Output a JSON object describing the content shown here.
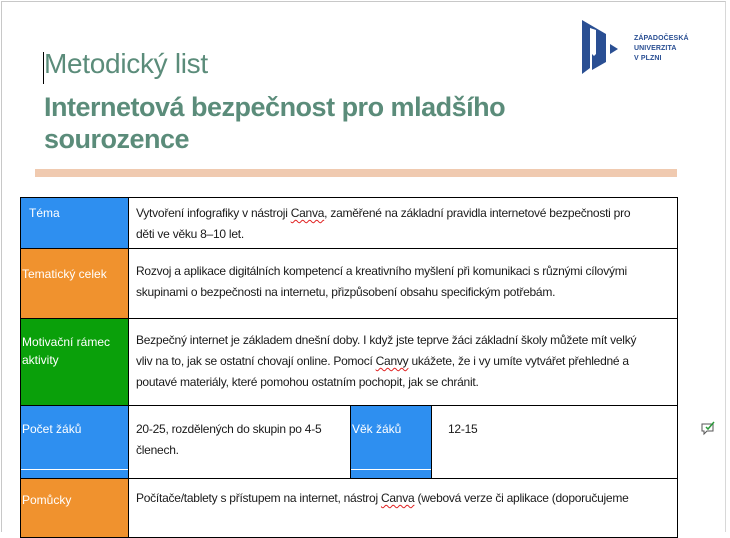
{
  "document": {
    "title_small": "Metodický list",
    "title_lines": [
      "Internetová bezpečnost pro mladšího",
      "sourozence"
    ]
  },
  "logo": {
    "lines": [
      "ZÁPADOČESKÁ",
      "UNIVERZITA",
      "V PLZNI"
    ],
    "color": "#2a4f93"
  },
  "colors": {
    "title": "#5b8c7a",
    "accent_bar": "#f0cab0",
    "blue": "#2e8ff0",
    "orange": "#f0922e",
    "green": "#0aa00a"
  },
  "table": {
    "rows": [
      {
        "label": "Téma",
        "lines": [
          {
            "pre": "Vytvoření infografiky v nástroji ",
            "spell": "Canva",
            "post": ", zaměřené na základní pravidla internetové bezpečnosti pro"
          },
          {
            "pre": "děti ve věku 8–10 let."
          }
        ]
      },
      {
        "label": "Tematický celek",
        "lines": [
          {
            "pre": "Rozvoj a aplikace digitálních kompetencí a kreativního myšlení při komunikaci s různými cílovými"
          },
          {
            "pre": "skupinami o bezpečnosti na internetu, přizpůsobení obsahu specifickým potřebám."
          }
        ]
      },
      {
        "label": "Motivační rámec aktivity",
        "lines": [
          {
            "pre": "Bezpečný internet je základem dnešní doby. I když jste teprve žáci základní školy můžete mít velký"
          },
          {
            "pre": "vliv na to, jak se ostatní chovají online. Pomocí ",
            "spell": "Canvy",
            "post": " ukážete, že i vy umíte vytvářet přehledné a"
          },
          {
            "pre": "poutavé materiály, které pomohou ostatním pochopit, jak se chránit."
          }
        ]
      },
      {
        "label": "Počet žáků",
        "lines": [
          {
            "pre": "20-25, rozdělených do skupin po 4-5"
          },
          {
            "pre": "členech."
          }
        ],
        "label2": "Věk žáků",
        "value2": "12-15"
      },
      {
        "label": "Pomůcky",
        "lines": [
          {
            "pre": "Počítače/tablety s přístupem na internet, nástroj ",
            "spell": "Canva",
            "post": " (webová verze či aplikace (doporučujeme"
          }
        ]
      }
    ]
  },
  "icons": {
    "comment": "comment-check-icon"
  }
}
